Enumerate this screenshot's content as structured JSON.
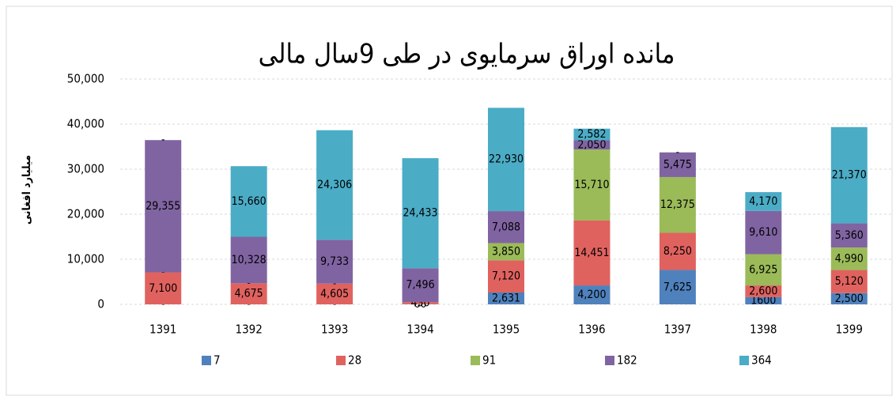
{
  "chart_data": {
    "type": "stacked_bar",
    "title": "مانده اوراق سرمایوی در طی 9سال مالی",
    "y_label": "میلیارد افغانی",
    "categories": [
      "1391",
      "1392",
      "1393",
      "1394",
      "1395",
      "1396",
      "1397",
      "1398",
      "1399"
    ],
    "series": [
      {
        "name": "7",
        "color": "#4f81bd",
        "values": [
          0,
          0,
          0,
          60,
          2631,
          4200,
          7625,
          1600,
          2500
        ],
        "value_labels": [
          "-",
          "-",
          "-",
          "60",
          "2,631",
          "4,200",
          "7,625",
          "1600",
          "2,500"
        ]
      },
      {
        "name": "28",
        "color": "#e0625f",
        "values": [
          7100,
          4675,
          4605,
          450,
          7120,
          14451,
          8250,
          2600,
          5120
        ],
        "value_labels": [
          "7,100",
          "4,675",
          "4,605",
          "450",
          "7,120",
          "14,451",
          "8,250",
          "2,600",
          "5,120"
        ]
      },
      {
        "name": "91",
        "color": "#9bbb59",
        "values": [
          0,
          0,
          0,
          0,
          3850,
          15710,
          12375,
          6925,
          4990
        ],
        "value_labels": [
          "-",
          "-",
          "-",
          "-",
          "3,850",
          "15,710",
          "12,375",
          "6,925",
          "4,990"
        ]
      },
      {
        "name": "182",
        "color": "#8064a2",
        "values": [
          29355,
          10328,
          9733,
          7496,
          7088,
          2050,
          5475,
          9610,
          5360
        ],
        "value_labels": [
          "29,355",
          "10,328",
          "9,733",
          "7,496",
          "7,088",
          "2,050",
          "5,475",
          "9,610",
          "5,360"
        ]
      },
      {
        "name": "364",
        "color": "#4bacc6",
        "values": [
          0,
          15660,
          24306,
          24433,
          22930,
          2582,
          0,
          4170,
          21370
        ],
        "value_labels": [
          "-",
          "15,660",
          "24,306",
          "24,433",
          "22,930",
          "2,582",
          "-",
          "4,170",
          "21,370"
        ]
      }
    ],
    "ylim": [
      0,
      50000
    ],
    "yticks": [
      0,
      {
        "value": 10000,
        "label": "10,000"
      },
      {
        "value": 20000,
        "label": "20,000"
      },
      {
        "value": 30000,
        "label": "30,000"
      },
      {
        "value": 40000,
        "label": "40,000"
      },
      {
        "value": 50000,
        "label": "50,000"
      }
    ],
    "grid": true,
    "legend": "bottom"
  }
}
